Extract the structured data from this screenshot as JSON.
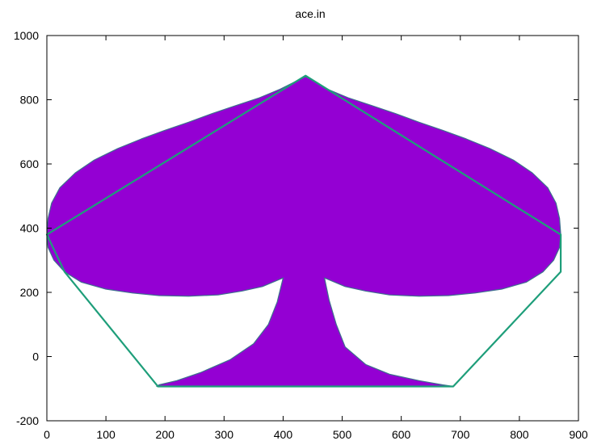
{
  "chart_data": {
    "type": "area",
    "title": "ace.in",
    "xlabel": "",
    "ylabel": "",
    "xlim": [
      0,
      900
    ],
    "ylim": [
      -200,
      1000
    ],
    "xticks": [
      0,
      100,
      200,
      300,
      400,
      500,
      600,
      700,
      800,
      900
    ],
    "yticks": [
      -200,
      0,
      200,
      400,
      600,
      800,
      1000
    ],
    "grid": false,
    "legend": "none",
    "colors": {
      "fill": "#9400D3",
      "outline": "#1E9E7A",
      "edge": "#3E6F8F"
    },
    "series": [
      {
        "type": "filled-shape",
        "points": [
          [
            438,
            872
          ],
          [
            420,
            856
          ],
          [
            395,
            833
          ],
          [
            360,
            806
          ],
          [
            320,
            782
          ],
          [
            280,
            757
          ],
          [
            240,
            730
          ],
          [
            200,
            705
          ],
          [
            160,
            678
          ],
          [
            120,
            648
          ],
          [
            80,
            612
          ],
          [
            48,
            572
          ],
          [
            22,
            526
          ],
          [
            8,
            478
          ],
          [
            2,
            430
          ],
          [
            0,
            380
          ],
          [
            2,
            340
          ],
          [
            12,
            300
          ],
          [
            30,
            264
          ],
          [
            58,
            232
          ],
          [
            100,
            210
          ],
          [
            145,
            198
          ],
          [
            190,
            190
          ],
          [
            240,
            188
          ],
          [
            290,
            192
          ],
          [
            330,
            204
          ],
          [
            365,
            218
          ],
          [
            400,
            245
          ],
          [
            390,
            170
          ],
          [
            375,
            100
          ],
          [
            350,
            40
          ],
          [
            310,
            -10
          ],
          [
            260,
            -50
          ],
          [
            220,
            -75
          ],
          [
            190,
            -88
          ],
          [
            186,
            -93
          ],
          [
            688,
            -93
          ],
          [
            670,
            -88
          ],
          [
            630,
            -75
          ],
          [
            580,
            -55
          ],
          [
            540,
            -25
          ],
          [
            505,
            30
          ],
          [
            490,
            100
          ],
          [
            478,
            175
          ],
          [
            470,
            245
          ],
          [
            505,
            218
          ],
          [
            540,
            204
          ],
          [
            580,
            192
          ],
          [
            630,
            188
          ],
          [
            680,
            190
          ],
          [
            725,
            198
          ],
          [
            770,
            210
          ],
          [
            812,
            232
          ],
          [
            840,
            264
          ],
          [
            858,
            300
          ],
          [
            868,
            340
          ],
          [
            870,
            380
          ],
          [
            868,
            430
          ],
          [
            862,
            478
          ],
          [
            848,
            526
          ],
          [
            822,
            572
          ],
          [
            790,
            612
          ],
          [
            750,
            648
          ],
          [
            710,
            678
          ],
          [
            670,
            705
          ],
          [
            630,
            730
          ],
          [
            590,
            757
          ],
          [
            550,
            782
          ],
          [
            510,
            806
          ],
          [
            475,
            833
          ],
          [
            455,
            856
          ],
          [
            438,
            872
          ]
        ]
      },
      {
        "type": "outline",
        "points": [
          [
            438,
            875
          ],
          [
            0,
            380
          ],
          [
            30,
            264
          ],
          [
            188,
            -93
          ],
          [
            688,
            -93
          ],
          [
            870,
            264
          ],
          [
            870,
            380
          ],
          [
            438,
            875
          ]
        ]
      }
    ]
  }
}
